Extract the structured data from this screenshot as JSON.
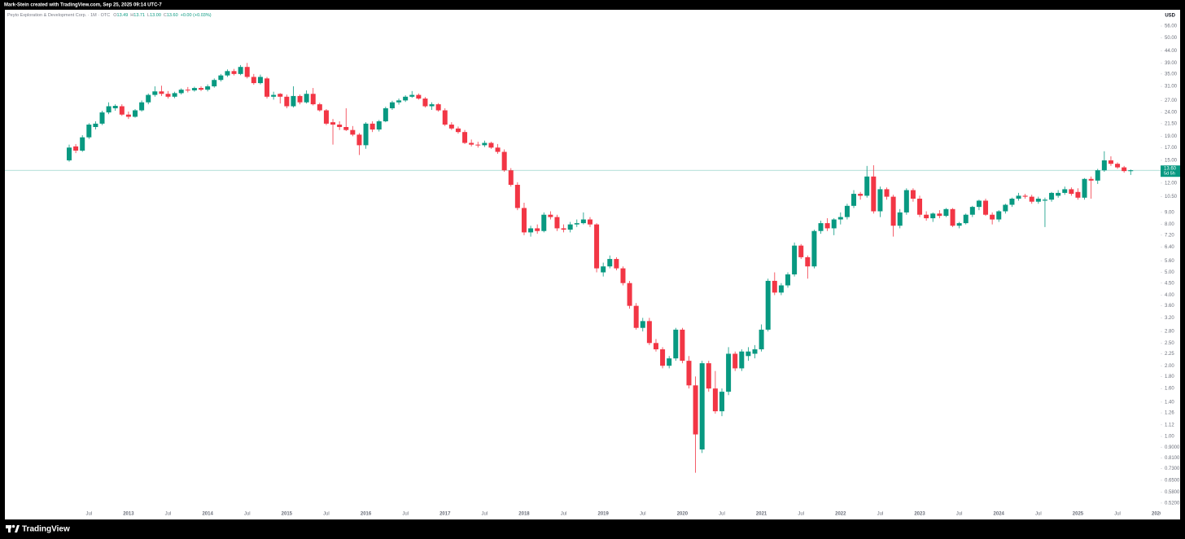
{
  "top_bar": {
    "text": "Mark-Stein created with TradingView.com, Sep 25, 2025 09:14 UTC-7"
  },
  "footer": {
    "brand": "TradingView"
  },
  "chart_data": {
    "type": "candlestick",
    "symbol": "Peyto Exploration & Development Corp. · 1M · OTC",
    "header_fields": [
      {
        "key": "O",
        "value": "13.49"
      },
      {
        "key": "H",
        "value": "13.71"
      },
      {
        "key": "L",
        "value": "13.00"
      },
      {
        "key": "C",
        "value": "13.60"
      }
    ],
    "header_change": "+0.00 (+0.03%)",
    "currency": "USD",
    "log_scale": true,
    "up_color": "#089981",
    "down_color": "#f23645",
    "ylim": [
      0.45,
      65.7
    ],
    "yticks": [
      {
        "value": 56,
        "label": "56.00"
      },
      {
        "value": 50,
        "label": "50.00"
      },
      {
        "value": 44,
        "label": "44.00"
      },
      {
        "value": 39,
        "label": "39.00"
      },
      {
        "value": 35,
        "label": "35.00"
      },
      {
        "value": 31,
        "label": "31.00"
      },
      {
        "value": 27,
        "label": "27.00"
      },
      {
        "value": 24,
        "label": "24.00"
      },
      {
        "value": 21.5,
        "label": "21.50"
      },
      {
        "value": 19,
        "label": "19.00"
      },
      {
        "value": 17,
        "label": "17.00"
      },
      {
        "value": 15,
        "label": "15.00"
      },
      {
        "value": 12,
        "label": "12.00"
      },
      {
        "value": 10.5,
        "label": "10.50"
      },
      {
        "value": 9,
        "label": "9.00"
      },
      {
        "value": 8,
        "label": "8.00"
      },
      {
        "value": 7.2,
        "label": "7.20"
      },
      {
        "value": 6.4,
        "label": "6.40"
      },
      {
        "value": 5.6,
        "label": "5.60"
      },
      {
        "value": 5,
        "label": "5.00"
      },
      {
        "value": 4.5,
        "label": "4.50"
      },
      {
        "value": 4,
        "label": "4.00"
      },
      {
        "value": 3.6,
        "label": "3.60"
      },
      {
        "value": 3.2,
        "label": "3.20"
      },
      {
        "value": 2.8,
        "label": "2.80"
      },
      {
        "value": 2.5,
        "label": "2.50"
      },
      {
        "value": 2.25,
        "label": "2.25"
      },
      {
        "value": 2,
        "label": "2.00"
      },
      {
        "value": 1.8,
        "label": "1.80"
      },
      {
        "value": 1.6,
        "label": "1.60"
      },
      {
        "value": 1.4,
        "label": "1.40"
      },
      {
        "value": 1.26,
        "label": "1.26"
      },
      {
        "value": 1.12,
        "label": "1.12"
      },
      {
        "value": 1,
        "label": "1.00"
      },
      {
        "value": 0.9,
        "label": "0.9000"
      },
      {
        "value": 0.81,
        "label": "0.8100"
      },
      {
        "value": 0.73,
        "label": "0.7300"
      },
      {
        "value": 0.65,
        "label": "0.6500"
      },
      {
        "value": 0.58,
        "label": "0.5800"
      },
      {
        "value": 0.52,
        "label": "0.5200"
      }
    ],
    "xticks": [
      {
        "value": "2012-07",
        "label": "Jul"
      },
      {
        "value": "2013-01",
        "label": "2013"
      },
      {
        "value": "2013-07",
        "label": "Jul"
      },
      {
        "value": "2014-01",
        "label": "2014"
      },
      {
        "value": "2014-07",
        "label": "Jul"
      },
      {
        "value": "2015-01",
        "label": "2015"
      },
      {
        "value": "2015-07",
        "label": "Jul"
      },
      {
        "value": "2016-01",
        "label": "2016"
      },
      {
        "value": "2016-07",
        "label": "Jul"
      },
      {
        "value": "2017-01",
        "label": "2017"
      },
      {
        "value": "2017-07",
        "label": "Jul"
      },
      {
        "value": "2018-01",
        "label": "2018"
      },
      {
        "value": "2018-07",
        "label": "Jul"
      },
      {
        "value": "2019-01",
        "label": "2019"
      },
      {
        "value": "2019-07",
        "label": "Jul"
      },
      {
        "value": "2020-01",
        "label": "2020"
      },
      {
        "value": "2020-07",
        "label": "Jul"
      },
      {
        "value": "2021-01",
        "label": "2021"
      },
      {
        "value": "2021-07",
        "label": "Jul"
      },
      {
        "value": "2022-01",
        "label": "2022"
      },
      {
        "value": "2022-07",
        "label": "Jul"
      },
      {
        "value": "2023-01",
        "label": "2023"
      },
      {
        "value": "2023-07",
        "label": "Jul"
      },
      {
        "value": "2024-01",
        "label": "2024"
      },
      {
        "value": "2024-07",
        "label": "Jul"
      },
      {
        "value": "2025-01",
        "label": "2025"
      },
      {
        "value": "2025-07",
        "label": "Jul"
      },
      {
        "value": "2026-01",
        "label": "2026"
      }
    ],
    "last_price": {
      "value": 13.6,
      "label": "13.60"
    },
    "countdown": "5d 5h",
    "x": [
      "2012-04",
      "2012-05",
      "2012-06",
      "2012-07",
      "2012-08",
      "2012-09",
      "2012-10",
      "2012-11",
      "2012-12",
      "2013-01",
      "2013-02",
      "2013-03",
      "2013-04",
      "2013-05",
      "2013-06",
      "2013-07",
      "2013-08",
      "2013-09",
      "2013-10",
      "2013-11",
      "2013-12",
      "2014-01",
      "2014-02",
      "2014-03",
      "2014-04",
      "2014-05",
      "2014-06",
      "2014-07",
      "2014-08",
      "2014-09",
      "2014-10",
      "2014-11",
      "2014-12",
      "2015-01",
      "2015-02",
      "2015-03",
      "2015-04",
      "2015-05",
      "2015-06",
      "2015-07",
      "2015-08",
      "2015-09",
      "2015-10",
      "2015-11",
      "2015-12",
      "2016-01",
      "2016-02",
      "2016-03",
      "2016-04",
      "2016-05",
      "2016-06",
      "2016-07",
      "2016-08",
      "2016-09",
      "2016-10",
      "2016-11",
      "2016-12",
      "2017-01",
      "2017-02",
      "2017-03",
      "2017-04",
      "2017-05",
      "2017-06",
      "2017-07",
      "2017-08",
      "2017-09",
      "2017-10",
      "2017-11",
      "2017-12",
      "2018-01",
      "2018-02",
      "2018-03",
      "2018-04",
      "2018-05",
      "2018-06",
      "2018-07",
      "2018-08",
      "2018-09",
      "2018-10",
      "2018-11",
      "2018-12",
      "2019-01",
      "2019-02",
      "2019-03",
      "2019-04",
      "2019-05",
      "2019-06",
      "2019-07",
      "2019-08",
      "2019-09",
      "2019-10",
      "2019-11",
      "2019-12",
      "2020-01",
      "2020-02",
      "2020-03",
      "2020-04",
      "2020-05",
      "2020-06",
      "2020-07",
      "2020-08",
      "2020-09",
      "2020-10",
      "2020-11",
      "2020-12",
      "2021-01",
      "2021-02",
      "2021-03",
      "2021-04",
      "2021-05",
      "2021-06",
      "2021-07",
      "2021-08",
      "2021-09",
      "2021-10",
      "2021-11",
      "2021-12",
      "2022-01",
      "2022-02",
      "2022-03",
      "2022-04",
      "2022-05",
      "2022-06",
      "2022-07",
      "2022-08",
      "2022-09",
      "2022-10",
      "2022-11",
      "2022-12",
      "2023-01",
      "2023-02",
      "2023-03",
      "2023-04",
      "2023-05",
      "2023-06",
      "2023-07",
      "2023-08",
      "2023-09",
      "2023-10",
      "2023-11",
      "2023-12",
      "2024-01",
      "2024-02",
      "2024-03",
      "2024-04",
      "2024-05",
      "2024-06",
      "2024-07",
      "2024-08",
      "2024-09",
      "2024-10",
      "2024-11",
      "2024-12",
      "2025-01",
      "2025-02",
      "2025-03",
      "2025-04",
      "2025-05",
      "2025-06",
      "2025-07",
      "2025-08",
      "2025-09"
    ],
    "open": [
      15.0,
      17.2,
      16.5,
      18.8,
      20.8,
      21.5,
      24.0,
      25.0,
      25.5,
      23.5,
      23.0,
      24.5,
      26.5,
      28.5,
      29.5,
      28.8,
      28.0,
      29.0,
      30.0,
      29.8,
      30.5,
      30.0,
      31.0,
      33.0,
      34.5,
      36.0,
      35.0,
      37.5,
      34.0,
      32.0,
      33.5,
      28.0,
      28.8,
      28.0,
      25.5,
      28.2,
      26.5,
      28.8,
      26.0,
      24.5,
      21.8,
      21.3,
      20.8,
      20.2,
      19.3,
      17.4,
      21.5,
      20.3,
      22.0,
      25.0,
      26.5,
      27.0,
      28.0,
      28.5,
      27.5,
      25.5,
      26.0,
      24.5,
      21.3,
      20.5,
      19.8,
      17.8,
      17.5,
      17.4,
      17.8,
      17.0,
      16.3,
      13.6,
      11.8,
      9.4,
      7.4,
      7.7,
      7.5,
      8.8,
      8.6,
      7.7,
      7.6,
      8.0,
      8.1,
      8.4,
      8.0,
      5.0,
      5.3,
      5.7,
      5.2,
      4.5,
      3.6,
      2.9,
      3.1,
      2.5,
      2.35,
      2.0,
      2.15,
      2.85,
      2.1,
      1.65,
      0.88,
      2.05,
      1.6,
      1.28,
      1.55,
      2.25,
      1.95,
      2.2,
      2.25,
      2.35,
      2.85,
      4.6,
      4.1,
      4.4,
      4.9,
      6.5,
      5.8,
      5.3,
      7.5,
      8.1,
      7.7,
      8.4,
      8.6,
      9.6,
      10.8,
      10.6,
      12.8,
      9.1,
      11.3,
      10.5,
      7.9,
      9.0,
      11.2,
      10.3,
      8.8,
      8.5,
      8.9,
      8.7,
      9.3,
      7.9,
      8.1,
      8.8,
      9.5,
      10.1,
      8.8,
      8.4,
      9.1,
      9.7,
      10.3,
      10.6,
      10.5,
      10.0,
      10.1,
      10.2,
      10.6,
      10.9,
      11.3,
      11.0,
      10.4,
      12.5,
      12.3,
      13.6,
      15.0,
      14.5,
      14.0,
      13.49
    ],
    "high": [
      17.5,
      17.6,
      19.2,
      21.6,
      22.0,
      24.4,
      26.5,
      26.0,
      26.0,
      24.2,
      24.8,
      27.0,
      28.9,
      31.0,
      31.2,
      29.6,
      29.4,
      30.4,
      30.8,
      30.9,
      31.0,
      31.6,
      33.5,
      35.0,
      36.6,
      36.8,
      38.2,
      39.0,
      35.0,
      34.8,
      34.0,
      29.4,
      29.0,
      28.6,
      31.0,
      28.6,
      29.8,
      30.5,
      26.4,
      24.8,
      22.5,
      22.0,
      25.0,
      21.0,
      19.6,
      21.8,
      22.0,
      22.3,
      25.4,
      26.9,
      27.5,
      28.4,
      29.6,
      28.9,
      27.9,
      26.5,
      26.3,
      25.0,
      21.8,
      20.9,
      20.2,
      18.4,
      18.0,
      18.2,
      18.0,
      17.6,
      16.7,
      13.9,
      12.1,
      9.9,
      7.9,
      8.0,
      9.0,
      9.1,
      8.8,
      8.0,
      8.2,
      8.4,
      9.0,
      8.6,
      8.1,
      5.5,
      5.9,
      5.8,
      5.3,
      4.6,
      3.7,
      3.2,
      3.2,
      2.6,
      2.4,
      2.2,
      2.9,
      2.9,
      2.2,
      1.8,
      2.1,
      2.1,
      1.9,
      1.6,
      2.4,
      2.3,
      2.35,
      2.4,
      2.45,
      3.0,
      4.7,
      5.0,
      4.5,
      5.0,
      6.7,
      6.6,
      5.9,
      7.6,
      8.3,
      8.5,
      8.5,
      9.0,
      9.8,
      11.2,
      11.0,
      14.2,
      14.3,
      11.6,
      11.5,
      10.7,
      9.3,
      11.4,
      11.4,
      10.6,
      9.1,
      9.0,
      9.2,
      9.4,
      9.4,
      8.2,
      8.9,
      9.6,
      10.2,
      10.3,
      9.0,
      9.2,
      9.8,
      10.4,
      10.9,
      10.8,
      10.7,
      10.5,
      10.4,
      11.0,
      11.2,
      11.6,
      11.5,
      11.4,
      12.6,
      12.8,
      13.8,
      16.4,
      15.6,
      14.7,
      14.2,
      13.71
    ],
    "low": [
      14.8,
      16.1,
      16.3,
      18.5,
      20.3,
      21.2,
      23.6,
      24.4,
      23.2,
      22.5,
      22.8,
      24.2,
      26.0,
      28.0,
      28.2,
      27.5,
      27.6,
      28.6,
      29.2,
      29.4,
      29.6,
      29.5,
      30.6,
      32.5,
      34.0,
      34.5,
      34.6,
      33.5,
      31.5,
      31.6,
      27.5,
      27.2,
      26.2,
      25.0,
      25.2,
      26.0,
      26.2,
      25.7,
      24.2,
      21.2,
      17.5,
      20.2,
      20.0,
      19.0,
      15.8,
      16.8,
      19.8,
      19.9,
      21.8,
      24.6,
      25.9,
      26.6,
      27.7,
      27.2,
      25.2,
      24.6,
      24.2,
      21.0,
      20.2,
      19.5,
      17.6,
      17.2,
      17.0,
      17.1,
      16.8,
      16.0,
      13.4,
      11.6,
      9.2,
      7.2,
      7.1,
      7.3,
      7.4,
      8.4,
      7.5,
      7.4,
      7.4,
      7.8,
      8.0,
      7.8,
      5.0,
      4.8,
      5.2,
      5.1,
      4.4,
      3.5,
      2.85,
      2.8,
      2.45,
      2.3,
      1.95,
      1.95,
      2.1,
      2.05,
      1.6,
      0.7,
      0.85,
      1.55,
      1.25,
      1.22,
      1.5,
      1.9,
      1.9,
      2.1,
      2.15,
      2.3,
      2.8,
      4.0,
      4.0,
      4.3,
      4.8,
      5.7,
      4.7,
      5.2,
      7.3,
      7.5,
      7.2,
      8.0,
      8.4,
      9.4,
      10.2,
      10.4,
      8.9,
      8.6,
      10.2,
      7.1,
      7.7,
      8.8,
      10.0,
      8.6,
      8.3,
      8.2,
      8.5,
      8.6,
      7.8,
      7.7,
      8.0,
      8.6,
      9.2,
      8.7,
      8.0,
      8.2,
      8.9,
      9.5,
      10.1,
      10.3,
      9.8,
      9.8,
      7.8,
      10.0,
      10.4,
      10.7,
      10.6,
      10.2,
      10.2,
      10.3,
      11.9,
      13.4,
      14.2,
      13.8,
      13.3,
      13.0
    ],
    "close": [
      17.0,
      16.5,
      18.8,
      21.3,
      21.5,
      24.0,
      25.5,
      25.6,
      23.5,
      23.0,
      24.5,
      26.5,
      28.5,
      29.5,
      28.8,
      28.0,
      29.0,
      30.0,
      29.8,
      30.5,
      30.0,
      31.0,
      33.0,
      34.5,
      36.0,
      35.0,
      37.5,
      34.0,
      32.0,
      34.0,
      28.0,
      28.5,
      28.0,
      25.5,
      28.2,
      26.5,
      28.8,
      26.0,
      24.5,
      21.5,
      21.3,
      20.8,
      20.2,
      19.3,
      17.4,
      21.5,
      20.3,
      22.0,
      25.0,
      26.5,
      27.0,
      28.0,
      28.5,
      27.5,
      25.5,
      26.0,
      24.5,
      21.3,
      20.5,
      19.8,
      17.8,
      17.5,
      17.4,
      17.8,
      17.0,
      16.3,
      13.6,
      11.8,
      9.4,
      7.4,
      7.7,
      7.5,
      8.8,
      8.6,
      7.7,
      7.6,
      8.0,
      8.1,
      8.4,
      8.0,
      5.2,
      5.3,
      5.7,
      5.2,
      4.5,
      3.6,
      2.9,
      3.1,
      2.5,
      2.35,
      2.0,
      2.15,
      2.85,
      2.1,
      1.65,
      1.02,
      2.05,
      1.6,
      1.28,
      1.55,
      2.25,
      1.95,
      2.3,
      2.3,
      2.35,
      2.85,
      4.6,
      4.1,
      4.4,
      4.9,
      6.5,
      5.8,
      5.3,
      7.5,
      8.1,
      7.7,
      8.4,
      8.6,
      9.6,
      10.8,
      10.6,
      12.8,
      9.1,
      11.3,
      10.5,
      7.9,
      9.0,
      11.2,
      10.3,
      8.8,
      8.5,
      8.9,
      8.7,
      9.3,
      7.9,
      8.1,
      8.8,
      9.5,
      10.1,
      8.8,
      8.4,
      9.1,
      9.7,
      10.3,
      10.6,
      10.5,
      10.0,
      10.3,
      10.2,
      10.9,
      10.9,
      11.3,
      10.8,
      10.4,
      12.5,
      12.3,
      13.6,
      15.0,
      14.5,
      14.0,
      13.5,
      13.6
    ]
  }
}
